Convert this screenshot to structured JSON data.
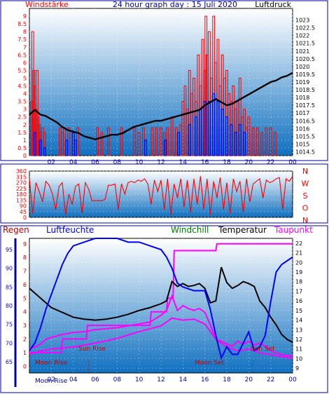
{
  "header": {
    "left_title": "Windstärke",
    "center_title": "24 hour graph day : 15 Juli 2020",
    "right_title": "Luftdruck"
  },
  "colors": {
    "frame": "#0000a0",
    "bg_top": "#ffffff",
    "bg_bottom": "#1070c0",
    "wind": "#ff0000",
    "gust": "#0000ff",
    "pressure": "#000000",
    "direction": "#ff0000",
    "humidity": "#0000ff",
    "temperature": "#000000",
    "dewpoint": "#ff00ff",
    "rain": "#ff0000",
    "label_rain": "#c00000",
    "label_hum": "#0000ff",
    "label_windchill": "#008000",
    "label_temp": "#000000",
    "label_dew": "#ff00ff"
  },
  "chart_data": [
    {
      "type": "bar",
      "title": "24 hour graph day : 15 Juli 2020",
      "ylabel": "Windstärke",
      "y2label": "Luftdruck",
      "xlim": [
        0,
        24
      ],
      "ylim": [
        0,
        9.5
      ],
      "y2lim": [
        1014.25,
        1023.75
      ],
      "x_ticks": [
        "02",
        "04",
        "06",
        "08",
        "10",
        "12",
        "14",
        "16",
        "18",
        "20",
        "22",
        "00"
      ],
      "y_ticks": [
        "0",
        "0.5",
        "1",
        "1.5",
        "2",
        "2.5",
        "3",
        "3.5",
        "4",
        "4.5",
        "5",
        "5.5",
        "6",
        "6.5",
        "7",
        "7.5",
        "8",
        "8.5",
        "9"
      ],
      "y2_ticks": [
        "1014.5",
        "1015",
        "1015.5",
        "1016",
        "1016.5",
        "1017",
        "1017.5",
        "1018",
        "1018.5",
        "1019",
        "1019.5",
        "1020",
        "1020.5",
        "1021",
        "1021.5",
        "1022",
        "1022.5",
        "1023"
      ],
      "wind_bars": [
        {
          "x": 0.2,
          "v": 3.5
        },
        {
          "x": 0.3,
          "v": 8.0
        },
        {
          "x": 0.4,
          "v": 5.5
        },
        {
          "x": 0.5,
          "v": 4.5
        },
        {
          "x": 0.6,
          "v": 3.0
        },
        {
          "x": 0.7,
          "v": 5.5
        },
        {
          "x": 0.8,
          "v": 2.5
        },
        {
          "x": 0.9,
          "v": 2.0
        },
        {
          "x": 1.0,
          "v": 1.5
        },
        {
          "x": 1.2,
          "v": 1.8
        },
        {
          "x": 1.4,
          "v": 1.5
        },
        {
          "x": 2.8,
          "v": 1.8
        },
        {
          "x": 3.0,
          "v": 1.5
        },
        {
          "x": 3.2,
          "v": 1.8
        },
        {
          "x": 3.6,
          "v": 1.8
        },
        {
          "x": 4.0,
          "v": 1.5
        },
        {
          "x": 4.4,
          "v": 1.8
        },
        {
          "x": 6.2,
          "v": 1.8
        },
        {
          "x": 6.6,
          "v": 1.5
        },
        {
          "x": 7.2,
          "v": 1.8
        },
        {
          "x": 8.4,
          "v": 1.8
        },
        {
          "x": 9.6,
          "v": 1.8
        },
        {
          "x": 10.0,
          "v": 1.5
        },
        {
          "x": 10.4,
          "v": 1.8
        },
        {
          "x": 11.2,
          "v": 1.8
        },
        {
          "x": 11.6,
          "v": 1.8
        },
        {
          "x": 12.0,
          "v": 1.8
        },
        {
          "x": 12.3,
          "v": 1.5
        },
        {
          "x": 12.6,
          "v": 1.8
        },
        {
          "x": 13.0,
          "v": 2.5
        },
        {
          "x": 13.4,
          "v": 1.8
        },
        {
          "x": 13.8,
          "v": 2.0
        },
        {
          "x": 14.0,
          "v": 3.5
        },
        {
          "x": 14.2,
          "v": 4.5
        },
        {
          "x": 14.4,
          "v": 3.0
        },
        {
          "x": 14.6,
          "v": 5.5
        },
        {
          "x": 14.8,
          "v": 4.0
        },
        {
          "x": 15.0,
          "v": 5.0
        },
        {
          "x": 15.2,
          "v": 3.5
        },
        {
          "x": 15.4,
          "v": 6.5
        },
        {
          "x": 15.6,
          "v": 4.5
        },
        {
          "x": 15.8,
          "v": 7.5
        },
        {
          "x": 16.0,
          "v": 5.5
        },
        {
          "x": 16.1,
          "v": 9.0
        },
        {
          "x": 16.2,
          "v": 6.5
        },
        {
          "x": 16.4,
          "v": 8.0
        },
        {
          "x": 16.6,
          "v": 5.0
        },
        {
          "x": 16.8,
          "v": 9.0
        },
        {
          "x": 17.0,
          "v": 6.0
        },
        {
          "x": 17.2,
          "v": 7.5
        },
        {
          "x": 17.4,
          "v": 4.5
        },
        {
          "x": 17.6,
          "v": 6.5
        },
        {
          "x": 17.8,
          "v": 5.0
        },
        {
          "x": 18.0,
          "v": 5.5
        },
        {
          "x": 18.2,
          "v": 4.0
        },
        {
          "x": 18.4,
          "v": 3.5
        },
        {
          "x": 18.6,
          "v": 4.5
        },
        {
          "x": 18.8,
          "v": 3.0
        },
        {
          "x": 19.0,
          "v": 3.5
        },
        {
          "x": 19.2,
          "v": 5.0
        },
        {
          "x": 19.4,
          "v": 2.5
        },
        {
          "x": 19.6,
          "v": 3.0
        },
        {
          "x": 19.8,
          "v": 1.8
        },
        {
          "x": 20.0,
          "v": 2.5
        },
        {
          "x": 20.4,
          "v": 1.8
        },
        {
          "x": 20.8,
          "v": 1.8
        },
        {
          "x": 21.2,
          "v": 1.5
        },
        {
          "x": 21.6,
          "v": 1.8
        },
        {
          "x": 22.0,
          "v": 1.8
        },
        {
          "x": 22.4,
          "v": 1.5
        }
      ],
      "gust_bars": [
        {
          "x": 0.5,
          "v": 1.5
        },
        {
          "x": 1.0,
          "v": 1.0
        },
        {
          "x": 1.4,
          "v": 0.5
        },
        {
          "x": 3.4,
          "v": 1.0
        },
        {
          "x": 4.0,
          "v": 1.5
        },
        {
          "x": 4.2,
          "v": 1.0
        },
        {
          "x": 10.6,
          "v": 1.0
        },
        {
          "x": 12.4,
          "v": 1.0
        },
        {
          "x": 13.6,
          "v": 1.5
        },
        {
          "x": 14.6,
          "v": 2.0
        },
        {
          "x": 15.2,
          "v": 2.5
        },
        {
          "x": 15.6,
          "v": 3.0
        },
        {
          "x": 16.0,
          "v": 3.5
        },
        {
          "x": 16.4,
          "v": 3.5
        },
        {
          "x": 16.8,
          "v": 4.0
        },
        {
          "x": 17.2,
          "v": 3.5
        },
        {
          "x": 17.6,
          "v": 3.0
        },
        {
          "x": 18.0,
          "v": 2.5
        },
        {
          "x": 18.4,
          "v": 2.0
        },
        {
          "x": 18.8,
          "v": 1.5
        },
        {
          "x": 19.2,
          "v": 2.0
        },
        {
          "x": 19.6,
          "v": 1.5
        }
      ],
      "pressure": {
        "x": [
          0.0,
          0.5,
          1.0,
          1.5,
          2.0,
          2.5,
          3.0,
          3.5,
          4.0,
          4.5,
          5.0,
          5.5,
          6.0,
          6.5,
          7.0,
          7.5,
          8.0,
          8.5,
          9.0,
          9.5,
          10.0,
          10.5,
          11.0,
          11.5,
          12.0,
          12.5,
          13.0,
          13.5,
          14.0,
          14.5,
          15.0,
          15.5,
          16.0,
          16.5,
          17.0,
          17.5,
          18.0,
          18.5,
          19.0,
          19.5,
          20.0,
          20.5,
          21.0,
          21.5,
          22.0,
          22.5,
          23.0,
          23.5,
          24.0
        ],
        "y": [
          1016.9,
          1017.2,
          1016.9,
          1016.8,
          1016.6,
          1016.4,
          1016.1,
          1015.9,
          1015.8,
          1015.7,
          1015.5,
          1015.4,
          1015.3,
          1015.4,
          1015.5,
          1015.6,
          1015.6,
          1015.7,
          1015.9,
          1016.1,
          1016.2,
          1016.3,
          1016.4,
          1016.5,
          1016.5,
          1016.6,
          1016.7,
          1016.8,
          1016.9,
          1017.0,
          1017.1,
          1017.2,
          1017.5,
          1017.7,
          1017.9,
          1017.7,
          1017.5,
          1017.6,
          1017.8,
          1018.0,
          1018.2,
          1018.4,
          1018.6,
          1018.8,
          1019.0,
          1019.1,
          1019.3,
          1019.4,
          1019.6
        ]
      }
    },
    {
      "type": "line",
      "ylabel": "",
      "right_labels": [
        "N",
        "W",
        "S",
        "O",
        "N"
      ],
      "xlim": [
        0,
        24
      ],
      "ylim": [
        0,
        360
      ],
      "y_ticks": [
        "0",
        "45",
        "90",
        "135",
        "180",
        "225",
        "270",
        "315",
        "360"
      ],
      "direction": {
        "x": [
          0.0,
          0.3,
          0.6,
          0.9,
          1.2,
          1.5,
          1.8,
          2.1,
          2.4,
          2.7,
          3.0,
          3.3,
          3.6,
          3.9,
          4.2,
          4.5,
          4.8,
          5.1,
          5.4,
          5.7,
          6.0,
          6.3,
          6.6,
          6.9,
          7.2,
          7.5,
          7.8,
          8.1,
          8.4,
          8.7,
          9.0,
          9.3,
          9.6,
          9.9,
          10.2,
          10.5,
          10.8,
          11.1,
          11.4,
          11.7,
          12.0,
          12.3,
          12.6,
          12.9,
          13.2,
          13.5,
          13.8,
          14.1,
          14.4,
          14.7,
          15.0,
          15.3,
          15.6,
          15.9,
          16.2,
          16.5,
          16.8,
          17.1,
          17.4,
          17.7,
          18.0,
          18.3,
          18.6,
          18.9,
          19.2,
          19.5,
          19.8,
          20.1,
          20.4,
          20.7,
          21.0,
          21.3,
          21.6,
          21.9,
          22.2,
          22.5,
          22.8,
          23.1,
          23.4,
          23.7,
          24.0
        ],
        "y": [
          300,
          30,
          270,
          200,
          120,
          280,
          250,
          180,
          60,
          240,
          270,
          20,
          180,
          100,
          240,
          260,
          30,
          270,
          220,
          130,
          130,
          130,
          130,
          140,
          250,
          250,
          260,
          60,
          260,
          180,
          270,
          280,
          270,
          290,
          280,
          300,
          260,
          100,
          290,
          200,
          290,
          60,
          300,
          20,
          260,
          150,
          300,
          80,
          290,
          40,
          300,
          100,
          320,
          60,
          300,
          20,
          280,
          150,
          310,
          60,
          270,
          30,
          300,
          200,
          280,
          40,
          300,
          120,
          260,
          280,
          300,
          150,
          290,
          270,
          280,
          300,
          310,
          60,
          300,
          280,
          320
        ]
      }
    },
    {
      "type": "line",
      "left_label_rain": "Regen",
      "left_label_hum": "Luftfeuchte",
      "label_windchill": "Windchill",
      "label_temp": "Temperatur",
      "label_dew": "Taupunkt",
      "xlim": [
        0,
        24
      ],
      "rain_ticks": [
        "0",
        "1",
        "2",
        "3",
        "4",
        "5",
        "6",
        "7",
        "8",
        "9"
      ],
      "hum_ticks": [
        "65",
        "70",
        "75",
        "80",
        "85",
        "90",
        "95"
      ],
      "temp_ticks": [
        "9",
        "10",
        "11",
        "12",
        "13",
        "14",
        "15",
        "16",
        "17",
        "18",
        "19",
        "20",
        "21",
        "22"
      ],
      "annotations": [
        "Moon Rise",
        "Sun Rise",
        "Moon Set",
        "Sun Set"
      ],
      "bottom_label": "Moon Rise",
      "humidity": {
        "x": [
          0.0,
          0.5,
          1.0,
          1.5,
          2.0,
          2.5,
          3.0,
          3.5,
          4.0,
          5.0,
          6.0,
          7.0,
          8.0,
          9.0,
          10.0,
          11.0,
          12.0,
          12.5,
          13.0,
          13.5,
          14.0,
          15.0,
          16.0,
          16.5,
          17.0,
          17.5,
          18.0,
          18.5,
          19.0,
          19.5,
          20.0,
          20.5,
          21.0,
          21.5,
          22.0,
          22.5,
          23.0,
          23.5,
          24.0
        ],
        "y": [
          68,
          70,
          74,
          79,
          83,
          87,
          91,
          94,
          96,
          97,
          98,
          98,
          98,
          97,
          97,
          96,
          95,
          93,
          90,
          86,
          85,
          84,
          84,
          79,
          72,
          66,
          69,
          67,
          67,
          70,
          73,
          68,
          69,
          72,
          81,
          89,
          91,
          92,
          93
        ]
      },
      "temperature": {
        "x": [
          0.0,
          0.5,
          1.0,
          1.5,
          2.0,
          3.0,
          4.0,
          5.0,
          6.0,
          7.0,
          8.0,
          9.0,
          10.0,
          11.0,
          12.0,
          12.5,
          13.0,
          13.5,
          14.0,
          14.5,
          15.0,
          15.5,
          16.0,
          16.5,
          17.0,
          17.5,
          18.0,
          18.5,
          19.0,
          19.5,
          20.0,
          20.5,
          21.0,
          21.5,
          22.0,
          22.5,
          23.0,
          23.5,
          24.0
        ],
        "y": [
          17.3,
          16.8,
          16.3,
          15.8,
          15.3,
          14.8,
          14.3,
          14.1,
          14.0,
          14.1,
          14.3,
          14.6,
          15.0,
          15.3,
          15.7,
          16.0,
          18.0,
          17.5,
          17.8,
          17.5,
          17.6,
          17.8,
          17.3,
          15.8,
          16.0,
          19.5,
          17.9,
          17.3,
          17.6,
          18.0,
          17.8,
          17.5,
          16.0,
          15.3,
          14.3,
          13.5,
          12.5,
          12.0,
          11.7
        ]
      },
      "windchill": {
        "x": [
          0.0,
          0.5,
          1.0,
          2.0,
          4.0,
          6.0,
          8.0,
          10.0,
          12.0,
          13.0,
          14.0,
          15.0,
          16.0,
          17.0,
          18.0,
          19.0,
          20.0,
          21.0,
          22.0,
          23.0,
          24.0
        ],
        "y": [
          10.5,
          10.6,
          10.8,
          11.0,
          11.2,
          11.6,
          12.1,
          12.8,
          13.4,
          14.2,
          14.0,
          14.1,
          13.6,
          12.0,
          11.2,
          10.8,
          11.0,
          10.6,
          10.4,
          10.2,
          10.0
        ]
      },
      "dewpoint": {
        "x": [
          0.0,
          0.5,
          1.0,
          1.5,
          2.0,
          3.0,
          4.0,
          5.0,
          6.0,
          7.0,
          8.0,
          9.0,
          10.0,
          11.0,
          12.0,
          12.5,
          13.0,
          13.5,
          14.0,
          14.5,
          15.0,
          15.5,
          16.0,
          16.5,
          17.0,
          17.5,
          18.0,
          18.5,
          19.0,
          19.5,
          20.0,
          20.5,
          21.0,
          21.5,
          22.0,
          22.5,
          23.0,
          23.5,
          24.0
        ],
        "y": [
          11.0,
          11.2,
          11.5,
          12.0,
          12.2,
          12.5,
          12.7,
          12.8,
          13.0,
          13.1,
          13.2,
          13.4,
          13.6,
          13.8,
          14.5,
          15.0,
          16.5,
          15.0,
          15.5,
          15.2,
          15.0,
          15.2,
          14.8,
          13.5,
          12.0,
          11.8,
          11.5,
          11.3,
          11.8,
          11.5,
          11.8,
          11.4,
          11.6,
          11.3,
          10.8,
          10.6,
          10.4,
          10.3,
          10.3
        ]
      },
      "rain_total": {
        "x": [
          0.0,
          2.9,
          3.0,
          5.2,
          5.3,
          11.0,
          11.1,
          12.5,
          12.6,
          13.1,
          13.2,
          17.0,
          17.1,
          24.0
        ],
        "y": [
          1.0,
          1.0,
          2.0,
          2.0,
          3.0,
          3.0,
          4.0,
          4.0,
          5.0,
          5.0,
          8.5,
          8.5,
          9.0,
          9.0
        ]
      }
    }
  ]
}
